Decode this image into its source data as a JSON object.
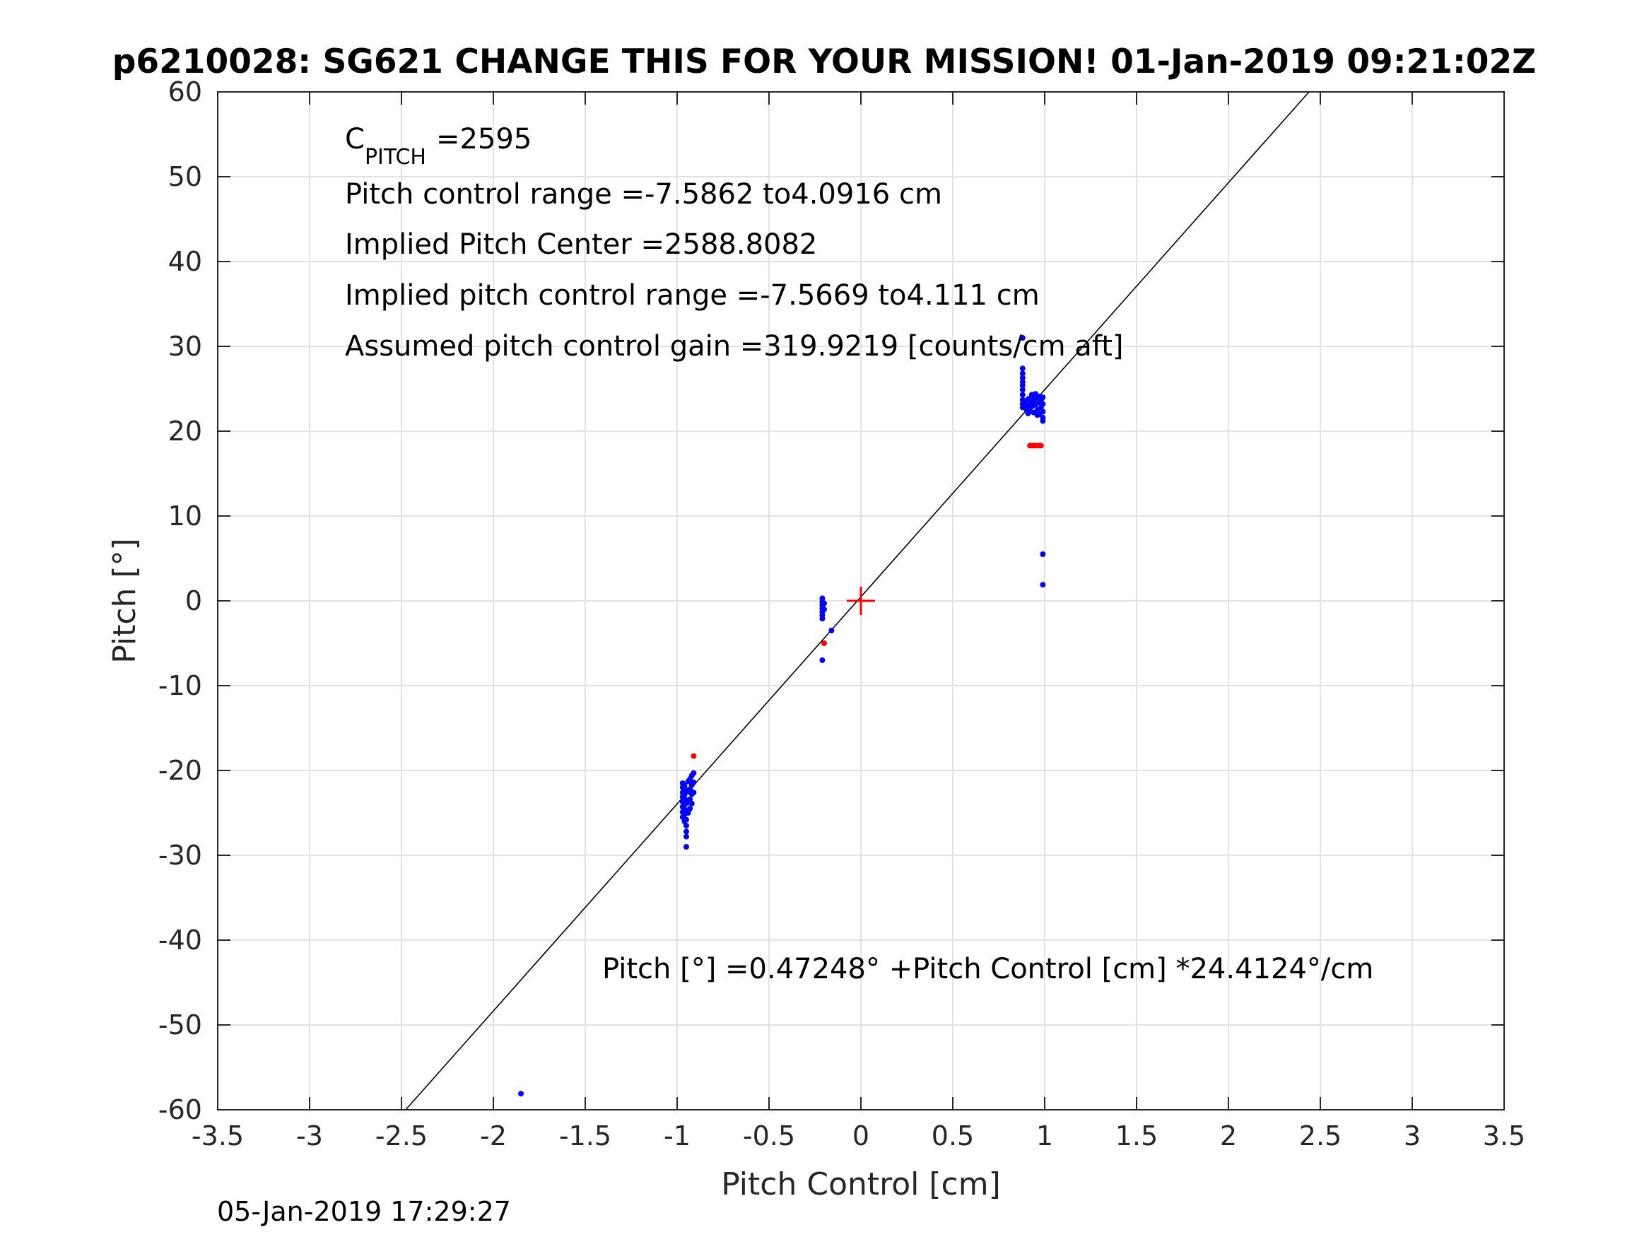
{
  "chart_data": {
    "type": "scatter",
    "title": "p6210028: SG621 CHANGE THIS FOR YOUR MISSION! 01-Jan-2019 09:21:02Z",
    "xlabel": "Pitch Control [cm]",
    "ylabel": "Pitch [°]",
    "xlim": [
      -3.5,
      3.5
    ],
    "ylim": [
      -60,
      60
    ],
    "xticks": [
      -3.5,
      -3,
      -2.5,
      -2,
      -1.5,
      -1,
      -0.5,
      0,
      0.5,
      1,
      1.5,
      2,
      2.5,
      3,
      3.5
    ],
    "yticks": [
      -60,
      -50,
      -40,
      -30,
      -20,
      -10,
      0,
      10,
      20,
      30,
      40,
      50,
      60
    ],
    "grid": true,
    "annotations": {
      "c_pitch_label": "C",
      "c_pitch_sub": "PITCH",
      "c_pitch_value": "=2595",
      "range": "Pitch control range =-7.5862 to4.0916 cm",
      "implied_center": "Implied Pitch Center =2588.8082",
      "implied_range": "Implied pitch control range =-7.5669 to4.111 cm",
      "gain": "Assumed pitch control gain =319.9219 [counts/cm aft]",
      "fit_equation": "Pitch [°] =0.47248° +Pitch Control [cm] *24.4124°/cm"
    },
    "timestamp": "05-Jan-2019 17:29:27",
    "fit_line": {
      "intercept": 0.47248,
      "slope": 24.4124,
      "color": "#000000"
    },
    "center_marker": {
      "x": 0,
      "y": 0,
      "color": "#ff0000"
    },
    "series": [
      {
        "color": "#0000ff",
        "points": [
          [
            0.88,
            31.0
          ],
          [
            0.88,
            27.4
          ],
          [
            0.88,
            26.8
          ],
          [
            0.88,
            26.3
          ],
          [
            0.88,
            25.8
          ],
          [
            0.88,
            25.4
          ],
          [
            0.88,
            24.9
          ],
          [
            0.88,
            24.3
          ],
          [
            0.88,
            23.7
          ],
          [
            0.88,
            23.2
          ],
          [
            0.88,
            22.8
          ],
          [
            0.89,
            23.5
          ],
          [
            0.9,
            23.0
          ],
          [
            0.9,
            22.6
          ],
          [
            0.91,
            23.8
          ],
          [
            0.92,
            23.3
          ],
          [
            0.92,
            22.4
          ],
          [
            0.93,
            24.0
          ],
          [
            0.93,
            22.9
          ],
          [
            0.94,
            23.6
          ],
          [
            0.94,
            22.2
          ],
          [
            0.95,
            24.2
          ],
          [
            0.95,
            23.1
          ],
          [
            0.96,
            23.9
          ],
          [
            0.96,
            22.5
          ],
          [
            0.97,
            24.1
          ],
          [
            0.97,
            23.4
          ],
          [
            0.97,
            22.0
          ],
          [
            0.98,
            23.7
          ],
          [
            0.98,
            22.8
          ],
          [
            0.99,
            24.0
          ],
          [
            0.99,
            23.2
          ],
          [
            0.99,
            22.3
          ],
          [
            0.99,
            21.6
          ],
          [
            0.99,
            21.2
          ],
          [
            0.95,
            24.4
          ],
          [
            0.93,
            24.3
          ],
          [
            0.91,
            22.1
          ],
          [
            0.96,
            21.9
          ],
          [
            0.99,
            5.5
          ],
          [
            0.99,
            1.9
          ],
          [
            -0.21,
            0.3
          ],
          [
            -0.21,
            -0.1
          ],
          [
            -0.21,
            -0.5
          ],
          [
            -0.21,
            -0.9
          ],
          [
            -0.21,
            -1.3
          ],
          [
            -0.21,
            -1.7
          ],
          [
            -0.21,
            -2.1
          ],
          [
            -0.2,
            -0.3
          ],
          [
            -0.2,
            -1.0
          ],
          [
            -0.16,
            -3.5
          ],
          [
            -0.21,
            -7.0
          ],
          [
            -0.97,
            -21.5
          ],
          [
            -0.97,
            -22.0
          ],
          [
            -0.97,
            -22.6
          ],
          [
            -0.97,
            -23.1
          ],
          [
            -0.97,
            -23.7
          ],
          [
            -0.97,
            -24.3
          ],
          [
            -0.97,
            -24.9
          ],
          [
            -0.97,
            -25.5
          ],
          [
            -0.96,
            -21.8
          ],
          [
            -0.96,
            -22.9
          ],
          [
            -0.96,
            -24.1
          ],
          [
            -0.96,
            -25.2
          ],
          [
            -0.96,
            -26.0
          ],
          [
            -0.95,
            -22.3
          ],
          [
            -0.95,
            -23.5
          ],
          [
            -0.95,
            -24.7
          ],
          [
            -0.95,
            -25.8
          ],
          [
            -0.95,
            -26.5
          ],
          [
            -0.95,
            -27.2
          ],
          [
            -0.95,
            -27.8
          ],
          [
            -0.95,
            -29.0
          ],
          [
            -0.94,
            -21.3
          ],
          [
            -0.94,
            -22.5
          ],
          [
            -0.94,
            -23.8
          ],
          [
            -0.94,
            -25.0
          ],
          [
            -0.93,
            -21.0
          ],
          [
            -0.93,
            -22.2
          ],
          [
            -0.93,
            -23.4
          ],
          [
            -0.93,
            -24.5
          ],
          [
            -0.92,
            -20.6
          ],
          [
            -0.92,
            -21.7
          ],
          [
            -0.92,
            -22.8
          ],
          [
            -0.92,
            -23.9
          ],
          [
            -0.91,
            -20.3
          ],
          [
            -0.91,
            -21.4
          ],
          [
            -0.91,
            -22.6
          ],
          [
            -1.85,
            -58.1
          ]
        ]
      },
      {
        "color": "#ff0000",
        "points": [
          [
            0.92,
            18.3
          ],
          [
            0.93,
            18.3
          ],
          [
            0.94,
            18.3
          ],
          [
            0.95,
            18.3
          ],
          [
            0.97,
            18.3
          ],
          [
            0.98,
            18.3
          ],
          [
            -0.2,
            -5.0
          ],
          [
            -0.91,
            -18.3
          ]
        ]
      }
    ]
  }
}
